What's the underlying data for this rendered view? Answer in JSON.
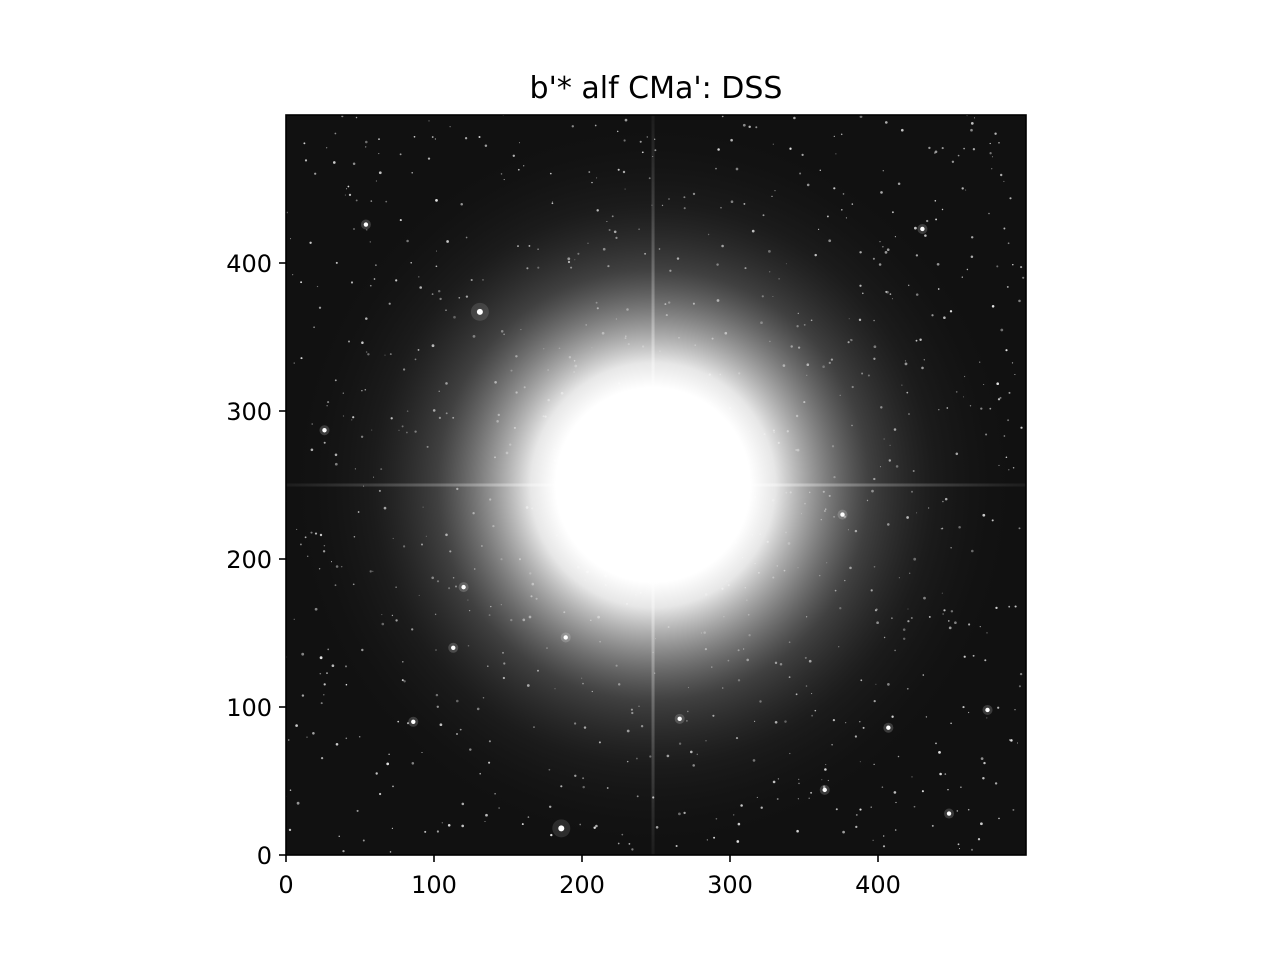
{
  "chart_data": {
    "type": "heatmap",
    "title": "b'* alf CMa': DSS",
    "colormap": "gray",
    "xlim": [
      0,
      500
    ],
    "ylim": [
      0,
      500
    ],
    "xticks": [
      0,
      100,
      200,
      300,
      400
    ],
    "yticks": [
      0,
      100,
      200,
      300,
      400
    ],
    "xlabel": "",
    "ylabel": "",
    "grid": false,
    "image": {
      "description_of_content": "DSS grayscale sky image of a very bright star with diffraction spikes",
      "saturated_core_center": [
        248,
        250
      ],
      "diffraction_spikes": true,
      "bright_background_stars": [
        [
          131,
          367
        ],
        [
          186,
          18
        ],
        [
          86,
          90
        ],
        [
          113,
          140
        ],
        [
          376,
          230
        ],
        [
          474,
          98
        ],
        [
          448,
          28
        ],
        [
          266,
          92
        ],
        [
          189,
          147
        ],
        [
          54,
          426
        ],
        [
          26,
          287
        ],
        [
          430,
          423
        ],
        [
          120,
          181
        ],
        [
          407,
          86
        ],
        [
          364,
          44
        ]
      ]
    }
  }
}
